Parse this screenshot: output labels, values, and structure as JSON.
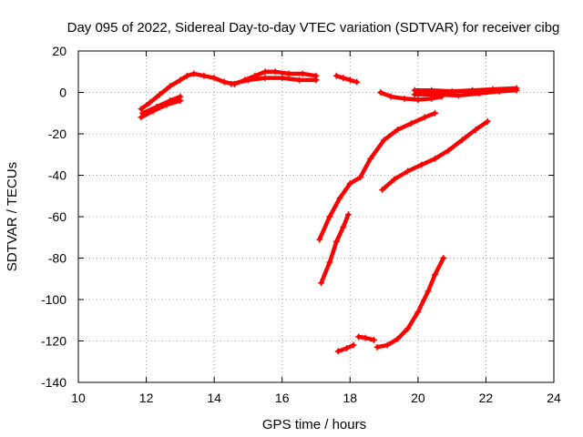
{
  "chart_data": {
    "type": "scatter",
    "title": "Day 095 of 2022, Sidereal Day-to-day VTEC variation (SDTVAR) for receiver cibg",
    "xlabel": "GPS time / hours",
    "ylabel": "SDTVAR / TECUs",
    "xlim": [
      10,
      24
    ],
    "ylim": [
      -140,
      20
    ],
    "xticks": [
      10,
      12,
      14,
      16,
      18,
      20,
      22,
      24
    ],
    "yticks": [
      -140,
      -120,
      -100,
      -80,
      -60,
      -40,
      -20,
      0,
      20
    ],
    "grid": true,
    "marker": "plus",
    "color": "#ff0000",
    "series": [
      {
        "x": [
          11.85,
          12.1,
          12.4,
          12.7,
          13.0,
          13.2,
          13.4,
          13.7,
          14.0,
          14.3,
          14.6,
          14.9,
          15.2,
          15.5,
          15.8,
          16.2,
          16.6,
          17.0
        ],
        "y": [
          -8,
          -5,
          -1,
          3,
          6,
          8,
          9,
          8,
          7,
          5,
          4,
          6,
          8,
          10,
          10,
          9,
          9,
          8
        ]
      },
      {
        "x": [
          11.85,
          12.2,
          12.6,
          13.0
        ],
        "y": [
          -12,
          -9,
          -6,
          -4
        ]
      },
      {
        "x": [
          11.9,
          12.3,
          12.7,
          13.0
        ],
        "y": [
          -10,
          -7,
          -4,
          -2
        ]
      },
      {
        "x": [
          14.5,
          15.0,
          15.5,
          16.0,
          16.5,
          17.0
        ],
        "y": [
          4,
          6,
          7,
          7,
          6,
          6
        ]
      },
      {
        "x": [
          17.6,
          17.8,
          18.0,
          18.2
        ],
        "y": [
          8,
          7,
          6,
          5
        ]
      },
      {
        "x": [
          18.9,
          19.2,
          19.6,
          20.0,
          20.4,
          20.7
        ],
        "y": [
          0,
          -2,
          -3,
          -3.5,
          -3,
          -2
        ]
      },
      {
        "x": [
          19.9,
          20.4,
          21.0,
          21.6,
          22.2,
          22.9
        ],
        "y": [
          1,
          1,
          0.5,
          1,
          1.5,
          2
        ]
      },
      {
        "x": [
          19.9,
          20.5,
          21.2,
          21.8,
          22.4,
          22.9
        ],
        "y": [
          -1,
          -1,
          -1.5,
          -0.5,
          0.5,
          1
        ]
      },
      {
        "x": [
          17.1,
          17.4,
          17.7,
          18.0,
          18.3,
          18.6,
          19.0,
          19.4,
          19.8,
          20.2,
          20.5
        ],
        "y": [
          -71,
          -60,
          -51,
          -44,
          -41,
          -32,
          -23,
          -18,
          -15,
          -12,
          -10
        ]
      },
      {
        "x": [
          17.15,
          17.4,
          17.6,
          17.8,
          17.95
        ],
        "y": [
          -92,
          -82,
          -72,
          -65,
          -59
        ]
      },
      {
        "x": [
          18.95,
          19.3,
          19.7,
          20.1,
          20.5,
          20.9,
          21.3,
          21.7,
          22.05
        ],
        "y": [
          -47,
          -42,
          -38,
          -35,
          -32,
          -28,
          -23,
          -18,
          -14
        ]
      },
      {
        "x": [
          17.65,
          17.9,
          18.1
        ],
        "y": [
          -125,
          -123.5,
          -122
        ]
      },
      {
        "x": [
          18.25,
          18.45,
          18.7
        ],
        "y": [
          -118,
          -118.5,
          -119.5
        ]
      },
      {
        "x": [
          18.8,
          19.1,
          19.4,
          19.7,
          20.0,
          20.3,
          20.5,
          20.75
        ],
        "y": [
          -123,
          -122,
          -119,
          -114,
          -106,
          -96,
          -88,
          -80
        ]
      }
    ]
  }
}
